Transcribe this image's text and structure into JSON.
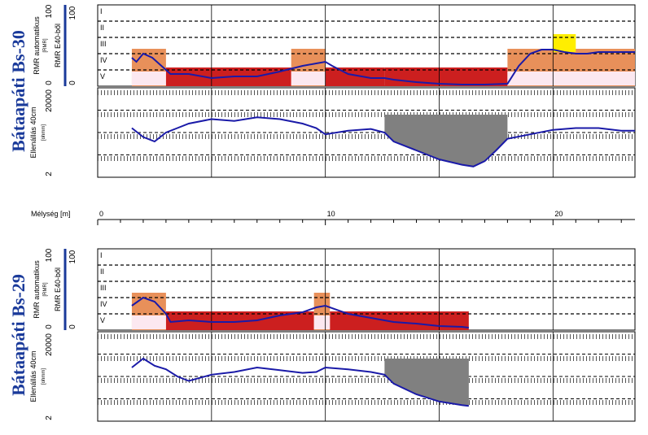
{
  "chart_data": [
    {
      "type": "area",
      "title": "Bátaapáti Bs-30",
      "rmr_panel": {
        "ylabel": "RMR automatikus",
        "ylabel2": "RMR E40-ből",
        "ylabel_unit": "[RMR]",
        "yticks": [
          "100",
          "0"
        ],
        "classes": [
          "I",
          "II",
          "III",
          "IV",
          "V"
        ],
        "curve": {
          "x": [
            1.5,
            1.7,
            2,
            2.4,
            2.8,
            3.2,
            4,
            5,
            6,
            7,
            8,
            9,
            9.6,
            10,
            10.3,
            11,
            12,
            12.6,
            13,
            14,
            15,
            16,
            17,
            18,
            18.5,
            19,
            19.5,
            20,
            20.5,
            21,
            21.5,
            22,
            23,
            23.6
          ],
          "y": [
            35,
            30,
            40,
            35,
            25,
            15,
            15,
            10,
            12,
            12,
            18,
            25,
            28,
            30,
            25,
            15,
            10,
            10,
            8,
            5,
            3,
            2,
            2,
            3,
            25,
            40,
            45,
            45,
            42,
            40,
            40,
            42,
            42,
            42
          ]
        },
        "fill_segments": [
          {
            "x0": 1.5,
            "x1": 3.0,
            "level": "IV"
          },
          {
            "x0": 3.0,
            "x1": 5.0,
            "level": "V"
          },
          {
            "x0": 5.0,
            "x1": 8.5,
            "level": "V"
          },
          {
            "x0": 8.5,
            "x1": 10.0,
            "level": "IV"
          },
          {
            "x0": 10.0,
            "x1": 12.6,
            "level": "V"
          },
          {
            "x0": 12.6,
            "x1": 18.0,
            "level": "V"
          },
          {
            "x0": 18.0,
            "x1": 23.6,
            "level": "IV"
          }
        ],
        "highlight": {
          "x0": 20.0,
          "x1": 21.0,
          "level": "III"
        }
      },
      "res_panel": {
        "ylabel": "Ellenállás 40cm",
        "ylabel_unit": "[ohmm]",
        "yticks": [
          "20000",
          "2"
        ],
        "curve": {
          "x": [
            1.5,
            2,
            2.5,
            3,
            3.5,
            4,
            5,
            6,
            7,
            8,
            9,
            9.6,
            10,
            11,
            12,
            12.6,
            13,
            14,
            15,
            16,
            16.5,
            17,
            17.5,
            18,
            19,
            20,
            21,
            22,
            23,
            23.6
          ],
          "y": [
            45,
            55,
            60,
            50,
            45,
            40,
            35,
            37,
            33,
            35,
            40,
            45,
            52,
            48,
            46,
            50,
            60,
            70,
            80,
            86,
            88,
            82,
            70,
            57,
            52,
            47,
            45,
            45,
            48,
            48
          ]
        },
        "shade": {
          "x0": 12.6,
          "x1": 18.0
        }
      }
    },
    {
      "type": "area",
      "title": "Bátaapáti Bs-29",
      "rmr_panel": {
        "ylabel": "RMR automatikus",
        "ylabel2": "RMR E40-ből",
        "ylabel_unit": "[RMR]",
        "yticks": [
          "100",
          "0"
        ],
        "classes": [
          "I",
          "II",
          "III",
          "IV",
          "V"
        ],
        "curve": {
          "x": [
            1.5,
            2,
            2.5,
            3,
            3.2,
            4,
            5,
            6,
            7,
            8,
            9,
            9.6,
            10,
            11,
            12,
            12.6,
            13,
            14,
            15,
            16,
            16.3
          ],
          "y": [
            30,
            40,
            35,
            20,
            10,
            12,
            10,
            10,
            12,
            18,
            22,
            28,
            30,
            20,
            15,
            12,
            10,
            8,
            5,
            4,
            3
          ]
        },
        "fill_segments": [
          {
            "x0": 1.5,
            "x1": 3.0,
            "level": "IV"
          },
          {
            "x0": 3.0,
            "x1": 9.5,
            "level": "V"
          },
          {
            "x0": 9.5,
            "x1": 10.2,
            "level": "IV"
          },
          {
            "x0": 10.2,
            "x1": 16.3,
            "level": "V"
          }
        ]
      },
      "res_panel": {
        "ylabel": "Ellenállás 40cm",
        "ylabel_unit": "[ohmm]",
        "yticks": [
          "20000",
          "2"
        ],
        "curve": {
          "x": [
            1.5,
            2,
            2.5,
            3,
            3.5,
            4,
            5,
            6,
            7,
            8,
            9,
            9.6,
            10,
            11,
            12,
            12.6,
            13,
            14,
            15,
            16,
            16.3
          ],
          "y": [
            40,
            30,
            38,
            42,
            50,
            55,
            48,
            45,
            40,
            43,
            46,
            45,
            40,
            42,
            45,
            48,
            58,
            70,
            78,
            82,
            83
          ]
        },
        "shade": {
          "x0": 12.6,
          "x1": 16.3
        }
      }
    }
  ],
  "depth_axis": {
    "label": "Mélység [m]",
    "ticks": [
      {
        "value": 0,
        "label": "0"
      },
      {
        "value": 10,
        "label": "10"
      },
      {
        "value": 20,
        "label": "20"
      }
    ],
    "range": [
      0,
      23.6
    ]
  },
  "colors": {
    "fill_iv": "#e8905a",
    "fill_v": "#cc1f1f",
    "fill_pink": "#fce8f0",
    "curve_blue": "#1a1aa8",
    "shade": "#808080",
    "highlight": "#ffee00",
    "grid": "#000000"
  }
}
